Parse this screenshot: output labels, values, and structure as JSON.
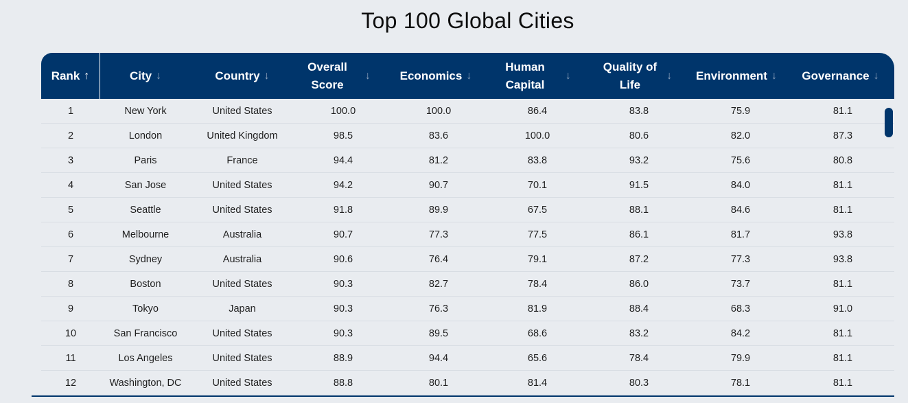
{
  "page": {
    "title": "Top 100 Global Cities"
  },
  "table": {
    "headers": {
      "rank": {
        "label": "Rank",
        "arrow": "↑"
      },
      "city": {
        "label": "City",
        "arrow": "↓"
      },
      "country": {
        "label": "Country",
        "arrow": "↓"
      },
      "overall_line1": "Overall",
      "overall_line2": "Score",
      "overall_arrow": "↓",
      "economics": {
        "label": "Economics",
        "arrow": "↓"
      },
      "human_line1": "Human",
      "human_line2": "Capital",
      "human_arrow": "↓",
      "quality_line1": "Quality of",
      "quality_line2": "Life",
      "quality_arrow": "↓",
      "environment": {
        "label": "Environment",
        "arrow": "↓"
      },
      "governance": {
        "label": "Governance",
        "arrow": "↓"
      }
    },
    "rows": [
      [
        "1",
        "New York",
        "United States",
        "100.0",
        "100.0",
        "86.4",
        "83.8",
        "75.9",
        "81.1"
      ],
      [
        "2",
        "London",
        "United Kingdom",
        "98.5",
        "83.6",
        "100.0",
        "80.6",
        "82.0",
        "87.3"
      ],
      [
        "3",
        "Paris",
        "France",
        "94.4",
        "81.2",
        "83.8",
        "93.2",
        "75.6",
        "80.8"
      ],
      [
        "4",
        "San Jose",
        "United States",
        "94.2",
        "90.7",
        "70.1",
        "91.5",
        "84.0",
        "81.1"
      ],
      [
        "5",
        "Seattle",
        "United States",
        "91.8",
        "89.9",
        "67.5",
        "88.1",
        "84.6",
        "81.1"
      ],
      [
        "6",
        "Melbourne",
        "Australia",
        "90.7",
        "77.3",
        "77.5",
        "86.1",
        "81.7",
        "93.8"
      ],
      [
        "7",
        "Sydney",
        "Australia",
        "90.6",
        "76.4",
        "79.1",
        "87.2",
        "77.3",
        "93.8"
      ],
      [
        "8",
        "Boston",
        "United States",
        "90.3",
        "82.7",
        "78.4",
        "86.0",
        "73.7",
        "81.1"
      ],
      [
        "9",
        "Tokyo",
        "Japan",
        "90.3",
        "76.3",
        "81.9",
        "88.4",
        "68.3",
        "91.0"
      ],
      [
        "10",
        "San Francisco",
        "United States",
        "90.3",
        "89.5",
        "68.6",
        "83.2",
        "84.2",
        "81.1"
      ],
      [
        "11",
        "Los Angeles",
        "United States",
        "88.9",
        "94.4",
        "65.6",
        "78.4",
        "79.9",
        "81.1"
      ],
      [
        "12",
        "Washington, DC",
        "United States",
        "88.8",
        "80.1",
        "81.4",
        "80.3",
        "78.1",
        "81.1"
      ]
    ]
  },
  "colors": {
    "header_bg": "#00356b",
    "header_text": "#ffffff",
    "page_bg": "#e9ecf0",
    "row_divider": "#d8dde3"
  }
}
